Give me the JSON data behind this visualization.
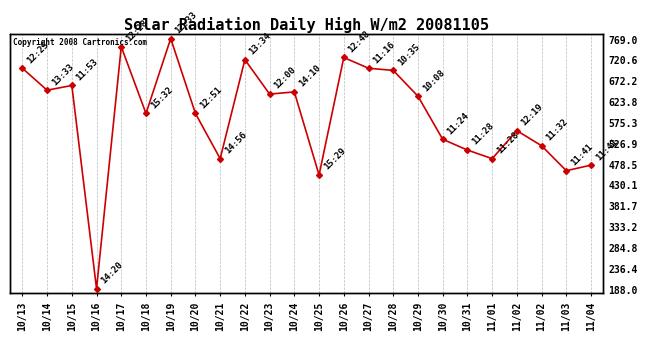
{
  "title": "Solar Radiation Daily High W/m2 20081105",
  "copyright": "Copyright 2008 Cartronics.com",
  "x_indices": [
    0,
    1,
    2,
    3,
    4,
    5,
    6,
    7,
    8,
    9,
    10,
    11,
    12,
    13,
    14,
    15,
    16,
    17,
    18,
    19,
    20,
    21,
    22,
    23
  ],
  "values": [
    700,
    649,
    660,
    188,
    750,
    595,
    769,
    595,
    490,
    720,
    640,
    645,
    452,
    725,
    700,
    695,
    635,
    535,
    510,
    490,
    555,
    520,
    462,
    475
  ],
  "annotations": [
    "12:25",
    "13:33",
    "11:53",
    "14:20",
    "12:28",
    "15:32",
    "12:33",
    "12:51",
    "14:56",
    "13:34",
    "12:00",
    "14:10",
    "15:29",
    "12:48",
    "11:16",
    "10:35",
    "10:08",
    "11:24",
    "11:28",
    "11:28",
    "12:19",
    "11:32",
    "11:41",
    "11:41"
  ],
  "x_labels": [
    "10/13",
    "10/14",
    "10/15",
    "10/16",
    "10/17",
    "10/18",
    "10/19",
    "10/20",
    "10/21",
    "10/22",
    "10/23",
    "10/24",
    "10/25",
    "10/26",
    "10/27",
    "10/28",
    "10/29",
    "10/30",
    "10/31",
    "11/01",
    "11/02",
    "11/02",
    "11/03",
    "11/04"
  ],
  "yticks": [
    188.0,
    236.4,
    284.8,
    333.2,
    381.7,
    430.1,
    478.5,
    526.9,
    575.3,
    623.8,
    672.2,
    720.6,
    769.0
  ],
  "ymin": 178.0,
  "ymax": 779.0,
  "line_color": "#cc0000",
  "marker_color": "#cc0000",
  "bg_color": "#ffffff",
  "plot_bg_color": "#ffffff",
  "grid_color": "#bbbbbb",
  "title_fontsize": 11,
  "tick_fontsize": 7,
  "annot_fontsize": 6.5
}
